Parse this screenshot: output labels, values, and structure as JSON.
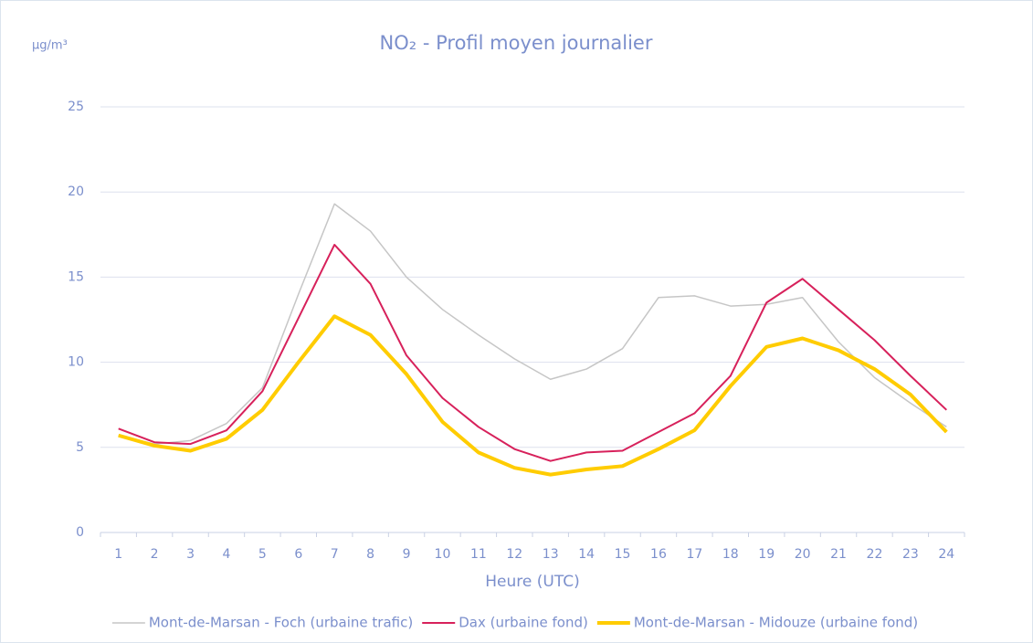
{
  "chart_data": {
    "type": "line",
    "title": "NO₂ - Profil moyen journalier",
    "y_unit": "µg/m³",
    "x_label": "Heure (UTC)",
    "categories": [
      "1",
      "2",
      "3",
      "4",
      "5",
      "6",
      "7",
      "8",
      "9",
      "10",
      "11",
      "12",
      "13",
      "14",
      "15",
      "16",
      "17",
      "18",
      "19",
      "20",
      "21",
      "22",
      "23",
      "24"
    ],
    "ylim": [
      0,
      25
    ],
    "yticks": [
      0,
      5,
      10,
      15,
      20,
      25
    ],
    "grid": true,
    "legend": "bottom",
    "series": [
      {
        "name": "Mont-de-Marsan - Foch (urbaine trafic)",
        "color": "#c6c6c6",
        "width": 1.5,
        "values": [
          5.7,
          5.2,
          5.4,
          6.4,
          8.5,
          14.0,
          19.3,
          17.7,
          15.0,
          13.1,
          11.6,
          10.2,
          9.0,
          9.6,
          10.8,
          13.8,
          13.9,
          13.3,
          13.4,
          13.8,
          11.2,
          9.1,
          7.6,
          6.2
        ]
      },
      {
        "name": "Dax (urbaine fond)",
        "color": "#d7215b",
        "width": 2,
        "values": [
          6.1,
          5.3,
          5.2,
          6.0,
          8.3,
          12.6,
          16.9,
          14.6,
          10.4,
          7.9,
          6.2,
          4.9,
          4.2,
          4.7,
          4.8,
          5.9,
          7.0,
          9.2,
          13.5,
          14.9,
          13.1,
          11.3,
          9.2,
          7.2
        ]
      },
      {
        "name": "Mont-de-Marsan - Midouze (urbaine fond)",
        "color": "#ffcc00",
        "width": 4,
        "values": [
          5.7,
          5.1,
          4.8,
          5.5,
          7.2,
          10.0,
          12.7,
          11.6,
          9.3,
          6.5,
          4.7,
          3.8,
          3.4,
          3.7,
          3.9,
          4.9,
          6.0,
          8.6,
          10.9,
          11.4,
          10.7,
          9.6,
          8.1,
          5.9
        ]
      }
    ]
  }
}
